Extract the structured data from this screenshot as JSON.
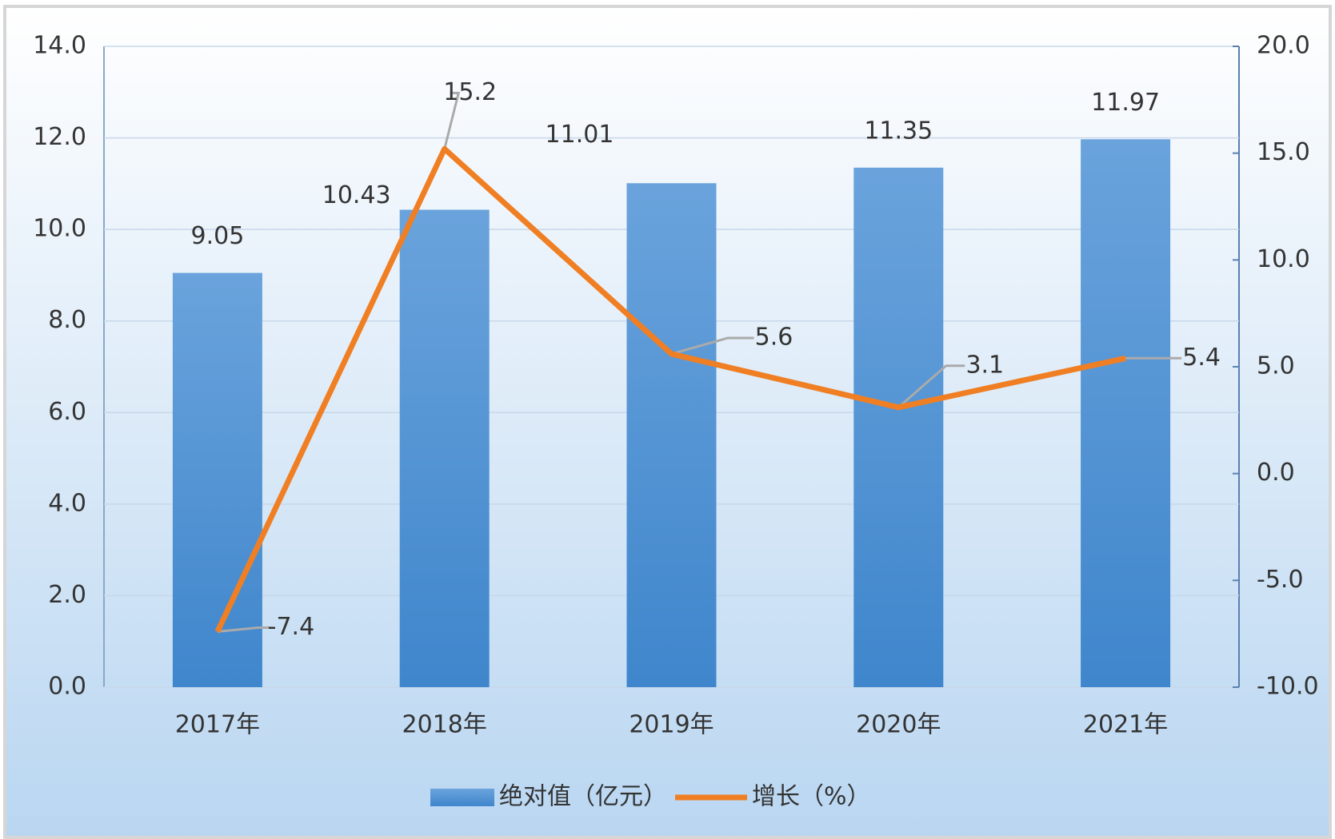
{
  "chart_data": {
    "type": "bar",
    "categories": [
      "2017年",
      "2018年",
      "2019年",
      "2020年",
      "2021年"
    ],
    "series": [
      {
        "name": "绝对值（亿元）",
        "type": "bar",
        "color": "#4a8fd4",
        "values": [
          9.05,
          10.43,
          11.01,
          11.35,
          11.97
        ]
      },
      {
        "name": "增长（%）",
        "type": "line",
        "axis": "y2",
        "color": "#f07f24",
        "values": [
          -7.4,
          15.2,
          5.6,
          3.1,
          5.4
        ]
      }
    ],
    "ylim": [
      0,
      14
    ],
    "yticks": [
      {
        "value": 0,
        "label": "0.0"
      },
      {
        "value": 2,
        "label": "2.0"
      },
      {
        "value": 4,
        "label": "4.0"
      },
      {
        "value": 6,
        "label": "6.0"
      },
      {
        "value": 8,
        "label": "8.0"
      },
      {
        "value": 10,
        "label": "10.0"
      },
      {
        "value": 12,
        "label": "12.0"
      },
      {
        "value": 14,
        "label": "14.0"
      }
    ],
    "y2lim": [
      -10,
      20
    ],
    "y2ticks": [
      {
        "value": -10,
        "label": "-10.0"
      },
      {
        "value": -5,
        "label": "-5.0"
      },
      {
        "value": 0,
        "label": "0.0"
      },
      {
        "value": 5,
        "label": "5.0"
      },
      {
        "value": 10,
        "label": "10.0"
      },
      {
        "value": 15,
        "label": "15.0"
      },
      {
        "value": 20,
        "label": "20.0"
      }
    ],
    "grid": true,
    "legend": "bottom"
  }
}
